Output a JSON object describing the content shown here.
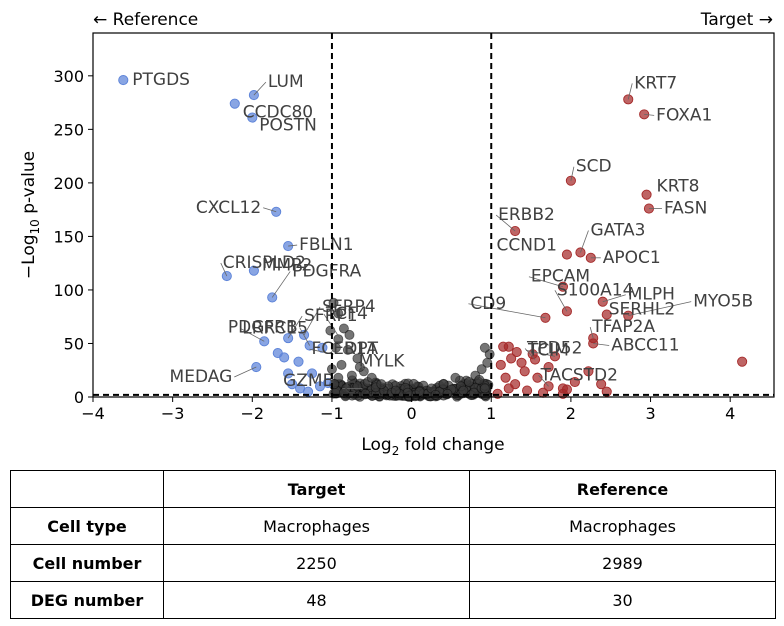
{
  "header": {
    "left_label": "← Reference",
    "right_label": "Target →"
  },
  "chart_data": {
    "type": "scatter",
    "xlabel_base": "Log",
    "xlabel_sub": "2",
    "xlabel_rest": " fold change",
    "ylabel_pre": "−Log",
    "ylabel_sub": "10",
    "ylabel_rest": " p-value",
    "xlim": [
      -4,
      4.55
    ],
    "ylim": [
      0,
      340
    ],
    "xticks": [
      -4,
      -3,
      -2,
      -1,
      0,
      1,
      2,
      3,
      4
    ],
    "yticks": [
      0,
      50,
      100,
      150,
      200,
      250,
      300
    ],
    "thresholds": {
      "fold_change": [
        -1,
        1
      ],
      "p_value_line": 2
    },
    "colors": {
      "reference": "#5b82d8",
      "target": "#a52a2a",
      "nonsig": "#3a3a3a",
      "label": "#404040"
    },
    "series": [
      {
        "name": "Reference",
        "points": [
          {
            "gene": "PTGDS",
            "x": -3.62,
            "y": 296
          },
          {
            "gene": "LUM",
            "x": -1.98,
            "y": 282
          },
          {
            "gene": "CCDC80",
            "x": -2.22,
            "y": 274
          },
          {
            "gene": "POSTN",
            "x": -2.0,
            "y": 261
          },
          {
            "gene": "CXCL12",
            "x": -1.7,
            "y": 173
          },
          {
            "gene": "FBLN1",
            "x": -1.55,
            "y": 141
          },
          {
            "gene": "MMP2",
            "x": -1.98,
            "y": 118
          },
          {
            "gene": "CRISPLD2",
            "x": -2.32,
            "y": 113
          },
          {
            "gene": "PDGFRA",
            "x": -1.75,
            "y": 93
          },
          {
            "gene": "SFRP1",
            "x": -1.55,
            "y": 55
          },
          {
            "gene": "SFRP4",
            "x": -1.35,
            "y": 58
          },
          {
            "gene": "LRRC15",
            "x": -1.85,
            "y": 52
          },
          {
            "gene": "PDGFRB",
            "x": -1.28,
            "y": 48
          },
          {
            "gene": "MEDAG",
            "x": -1.95,
            "y": 28
          },
          {
            "gene": "GZMB",
            "x": -1.5,
            "y": 12
          },
          {
            "gene": "",
            "x": -1.68,
            "y": 41
          },
          {
            "gene": "",
            "x": -1.6,
            "y": 37
          },
          {
            "gene": "",
            "x": -1.42,
            "y": 33
          },
          {
            "gene": "",
            "x": -1.25,
            "y": 22
          },
          {
            "gene": "",
            "x": -1.15,
            "y": 10
          },
          {
            "gene": "",
            "x": -1.4,
            "y": 8
          },
          {
            "gene": "",
            "x": -1.3,
            "y": 5
          },
          {
            "gene": "",
            "x": -1.55,
            "y": 22
          },
          {
            "gene": "",
            "x": -1.12,
            "y": 46
          },
          {
            "gene": "",
            "x": -1.05,
            "y": 13
          }
        ]
      },
      {
        "name": "Target",
        "points": [
          {
            "gene": "KRT7",
            "x": 2.72,
            "y": 278
          },
          {
            "gene": "FOXA1",
            "x": 2.92,
            "y": 264
          },
          {
            "gene": "SCD",
            "x": 2.0,
            "y": 202
          },
          {
            "gene": "KRT8",
            "x": 2.95,
            "y": 189
          },
          {
            "gene": "FASN",
            "x": 2.98,
            "y": 176
          },
          {
            "gene": "ERBB2",
            "x": 1.3,
            "y": 155
          },
          {
            "gene": "GATA3",
            "x": 2.12,
            "y": 135
          },
          {
            "gene": "CCND1",
            "x": 1.95,
            "y": 133
          },
          {
            "gene": "APOC1",
            "x": 2.25,
            "y": 130
          },
          {
            "gene": "EPCAM",
            "x": 1.9,
            "y": 103
          },
          {
            "gene": "MLPH",
            "x": 2.4,
            "y": 89
          },
          {
            "gene": "MYO5B",
            "x": 2.72,
            "y": 76
          },
          {
            "gene": "CD9",
            "x": 1.68,
            "y": 74
          },
          {
            "gene": "S100A14",
            "x": 1.95,
            "y": 80
          },
          {
            "gene": "SERHL2",
            "x": 2.45,
            "y": 77
          },
          {
            "gene": "TFAP2A",
            "x": 2.28,
            "y": 55
          },
          {
            "gene": "TCIM",
            "x": 1.8,
            "y": 38
          },
          {
            "gene": "TPD52",
            "x": 1.55,
            "y": 35
          },
          {
            "gene": "ABCC11",
            "x": 2.28,
            "y": 50
          },
          {
            "gene": "TACSTD2",
            "x": 1.72,
            "y": 10
          },
          {
            "gene": "",
            "x": 4.15,
            "y": 33
          },
          {
            "gene": "",
            "x": 1.15,
            "y": 47
          },
          {
            "gene": "",
            "x": 1.22,
            "y": 47
          },
          {
            "gene": "",
            "x": 1.32,
            "y": 42
          },
          {
            "gene": "",
            "x": 1.25,
            "y": 36
          },
          {
            "gene": "",
            "x": 1.38,
            "y": 32
          },
          {
            "gene": "",
            "x": 1.52,
            "y": 40
          },
          {
            "gene": "",
            "x": 1.12,
            "y": 30
          },
          {
            "gene": "",
            "x": 1.42,
            "y": 24
          },
          {
            "gene": "",
            "x": 1.58,
            "y": 18
          },
          {
            "gene": "",
            "x": 1.3,
            "y": 12
          },
          {
            "gene": "",
            "x": 1.22,
            "y": 8
          },
          {
            "gene": "",
            "x": 1.45,
            "y": 6
          },
          {
            "gene": "",
            "x": 1.65,
            "y": 4
          },
          {
            "gene": "",
            "x": 1.9,
            "y": 8
          },
          {
            "gene": "",
            "x": 1.95,
            "y": 7
          },
          {
            "gene": "",
            "x": 2.05,
            "y": 14
          },
          {
            "gene": "",
            "x": 2.22,
            "y": 24
          },
          {
            "gene": "",
            "x": 2.38,
            "y": 12
          },
          {
            "gene": "",
            "x": 2.45,
            "y": 5
          },
          {
            "gene": "",
            "x": 1.9,
            "y": 3
          },
          {
            "gene": "",
            "x": 1.18,
            "y": 18
          },
          {
            "gene": "",
            "x": 1.72,
            "y": 28
          },
          {
            "gene": "",
            "x": 1.08,
            "y": 3
          }
        ]
      }
    ],
    "nonsig_labels": [
      {
        "gene": "TCF4",
        "x": -0.9,
        "y": 55
      },
      {
        "gene": "FCER1A",
        "x": -0.98,
        "y": 40
      },
      {
        "gene": "DPT",
        "x": -0.72,
        "y": 40
      },
      {
        "gene": "MYLK",
        "x": -0.55,
        "y": 22
      },
      {
        "gene": "C",
        "x": -0.62,
        "y": 8
      }
    ],
    "nonsig_cluster": [
      [
        -0.98,
        88
      ],
      [
        -0.92,
        78
      ],
      [
        -0.85,
        64
      ],
      [
        -0.78,
        58
      ],
      [
        -0.92,
        54
      ],
      [
        -1.02,
        62
      ],
      [
        -0.95,
        46
      ],
      [
        -0.8,
        44
      ],
      [
        -0.68,
        36
      ],
      [
        -0.88,
        30
      ],
      [
        -0.6,
        24
      ],
      [
        -0.75,
        20
      ],
      [
        -0.92,
        18
      ],
      [
        -0.55,
        14
      ],
      [
        -0.68,
        10
      ],
      [
        -0.82,
        8
      ],
      [
        -0.45,
        9
      ],
      [
        -0.35,
        6
      ],
      [
        -0.25,
        4
      ],
      [
        -0.15,
        3
      ],
      [
        0.05,
        2
      ],
      [
        0.2,
        3
      ],
      [
        0.35,
        5
      ],
      [
        0.5,
        7
      ],
      [
        0.62,
        10
      ],
      [
        0.72,
        14
      ],
      [
        0.8,
        20
      ],
      [
        0.88,
        26
      ],
      [
        0.95,
        32
      ],
      [
        0.98,
        40
      ],
      [
        0.92,
        46
      ],
      [
        0.85,
        16
      ],
      [
        0.55,
        18
      ],
      [
        0.4,
        12
      ],
      [
        0.25,
        8
      ],
      [
        0.1,
        5
      ],
      [
        -0.05,
        4
      ],
      [
        -0.2,
        6
      ],
      [
        -0.38,
        12
      ],
      [
        -0.5,
        18
      ],
      [
        -0.65,
        28
      ],
      [
        -1.0,
        26
      ],
      [
        -0.97,
        12
      ],
      [
        0.65,
        6
      ],
      [
        0.78,
        4
      ],
      [
        0.3,
        2
      ],
      [
        -0.58,
        3
      ],
      [
        0.45,
        3
      ],
      [
        0.92,
        8
      ],
      [
        -0.85,
        4
      ]
    ]
  },
  "table": {
    "columns": [
      "",
      "Target",
      "Reference"
    ],
    "rows": [
      {
        "label": "Cell type",
        "target": "Macrophages",
        "reference": "Macrophages"
      },
      {
        "label": "Cell number",
        "target": "2250",
        "reference": "2989"
      },
      {
        "label": "DEG number",
        "target": "48",
        "reference": "30"
      }
    ]
  }
}
